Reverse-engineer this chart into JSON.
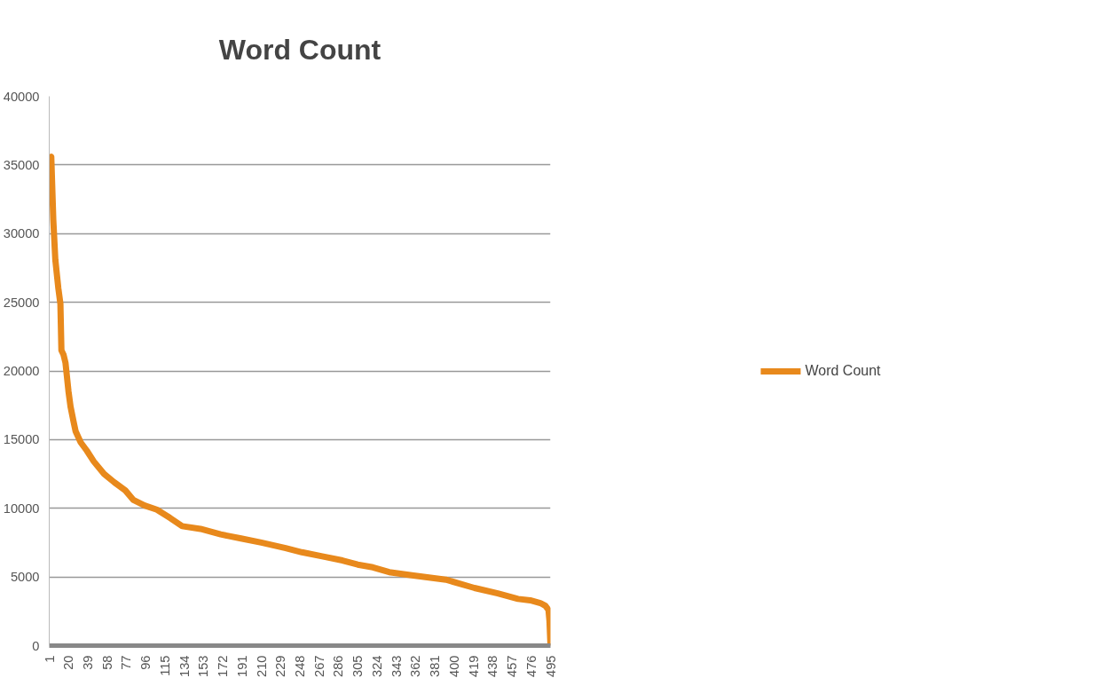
{
  "chart_data": {
    "type": "line",
    "title": "Word Count",
    "xlim": [
      1,
      495
    ],
    "xticks": [
      1,
      20,
      39,
      58,
      77,
      96,
      115,
      134,
      153,
      172,
      191,
      210,
      229,
      248,
      267,
      286,
      305,
      324,
      343,
      362,
      381,
      400,
      419,
      438,
      457,
      476,
      495
    ],
    "ylim": [
      0,
      40000
    ],
    "yticks": [
      0,
      5000,
      10000,
      15000,
      20000,
      25000,
      30000,
      35000,
      40000
    ],
    "grid": "y",
    "legend": "right",
    "marker": "none",
    "line_style": "solid",
    "series": [
      {
        "name": "Word Count",
        "color": "#e8891c",
        "x": [
          1,
          3,
          5,
          7,
          10,
          12,
          13,
          15,
          17,
          20,
          22,
          25,
          27,
          32,
          38,
          45,
          55,
          65,
          76,
          84,
          95,
          107,
          120,
          132,
          150,
          170,
          190,
          210,
          234,
          250,
          270,
          290,
          305,
          320,
          336,
          360,
          392,
          420,
          443,
          463,
          475,
          485,
          490,
          493,
          494,
          495
        ],
        "values": [
          35500,
          35600,
          31000,
          28100,
          26000,
          24900,
          21500,
          21200,
          20600,
          18500,
          17400,
          16300,
          15600,
          14800,
          14200,
          13400,
          12500,
          11900,
          11300,
          10600,
          10200,
          9900,
          9300,
          8700,
          8500,
          8100,
          7800,
          7500,
          7100,
          6800,
          6500,
          6200,
          5900,
          5700,
          5350,
          5100,
          4800,
          4200,
          3800,
          3400,
          3300,
          3100,
          2900,
          2600,
          1800,
          0
        ]
      }
    ]
  }
}
